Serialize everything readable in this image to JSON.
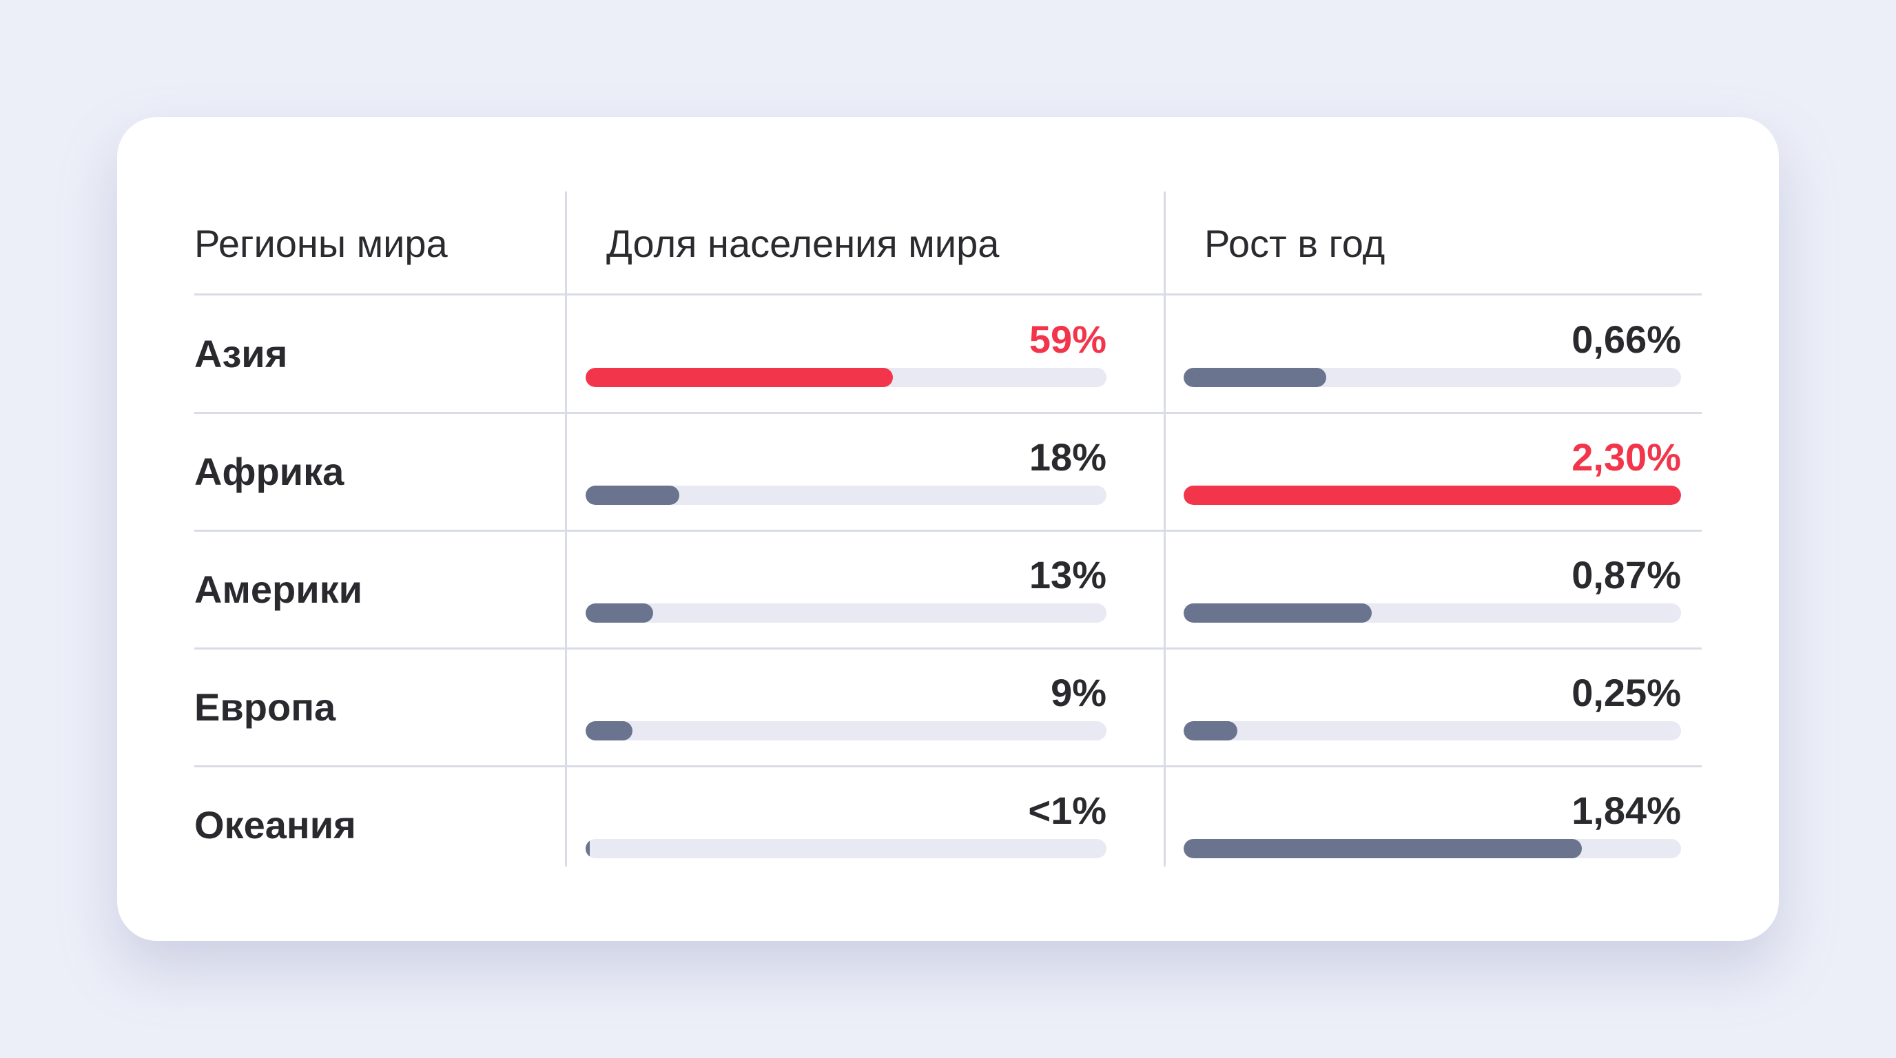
{
  "chart_data": {
    "type": "table",
    "columns": [
      "Регионы мира",
      "Доля населения мира",
      "Рост в год"
    ],
    "rows": [
      {
        "region": "Азия",
        "share": {
          "label": "59%",
          "value": 59,
          "highlight": true
        },
        "growth": {
          "label": "0,66%",
          "value": 0.66,
          "highlight": false
        }
      },
      {
        "region": "Африка",
        "share": {
          "label": "18%",
          "value": 18,
          "highlight": false
        },
        "growth": {
          "label": "2,30%",
          "value": 2.3,
          "highlight": true
        }
      },
      {
        "region": "Америки",
        "share": {
          "label": "13%",
          "value": 13,
          "highlight": false
        },
        "growth": {
          "label": "0,87%",
          "value": 0.87,
          "highlight": false
        }
      },
      {
        "region": "Европа",
        "share": {
          "label": "9%",
          "value": 9,
          "highlight": false
        },
        "growth": {
          "label": "0,25%",
          "value": 0.25,
          "highlight": false
        }
      },
      {
        "region": "Океания",
        "share": {
          "label": "<1%",
          "value": 0.5,
          "highlight": false
        },
        "growth": {
          "label": "1,84%",
          "value": 1.84,
          "highlight": false
        }
      }
    ],
    "share_max": 100,
    "growth_max": 2.3
  },
  "colors": {
    "highlight": "#F2354B",
    "bar": "#6B748E",
    "track": "#E8E9F3",
    "background": "#ECEEF8",
    "card": "#FFFFFF"
  }
}
